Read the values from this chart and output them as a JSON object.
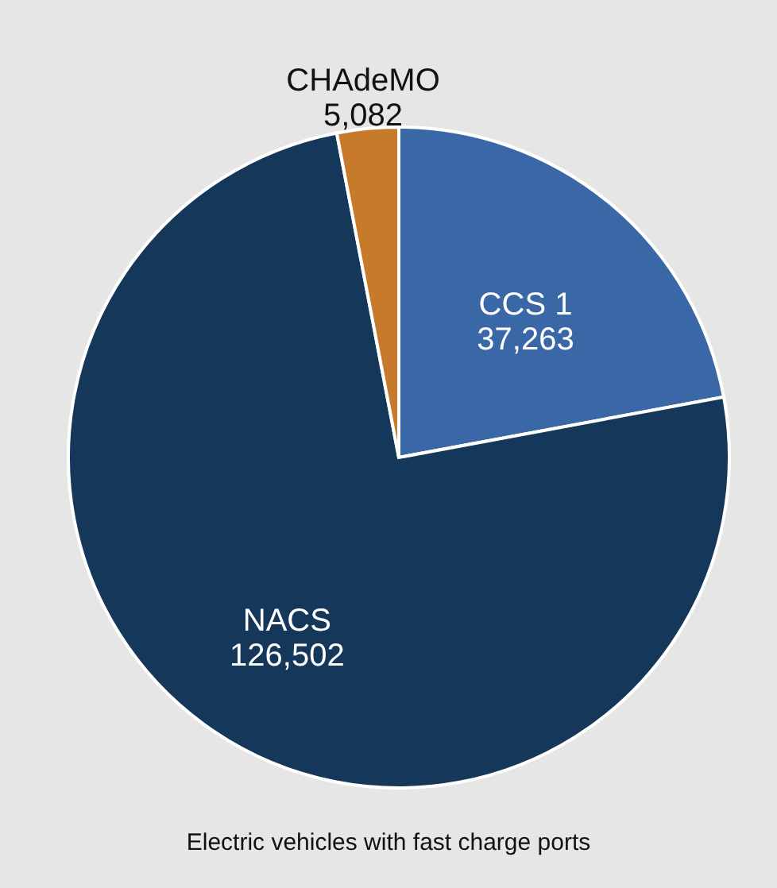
{
  "chart_data": {
    "type": "pie",
    "categories": [
      "CCS 1",
      "NACS",
      "CHAdeMO"
    ],
    "values": [
      37263,
      126502,
      5082
    ],
    "colors": [
      "#3a67a6",
      "#14375a",
      "#c87a2c"
    ],
    "value_labels": [
      "37,263",
      "126,502",
      "5,082"
    ],
    "annotations": [
      "Electric vehicles with fast charge ports"
    ]
  }
}
